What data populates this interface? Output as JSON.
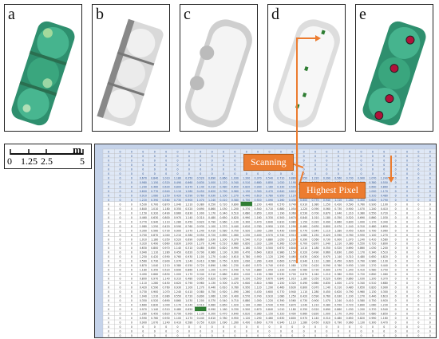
{
  "panels": [
    {
      "id": "a",
      "label": "a"
    },
    {
      "id": "b",
      "label": "b"
    },
    {
      "id": "c",
      "label": "c"
    },
    {
      "id": "d",
      "label": "d"
    },
    {
      "id": "e",
      "label": "e"
    }
  ],
  "scale": {
    "unit": "m",
    "ticks": [
      "0",
      "1.25",
      "2.5",
      "5"
    ]
  },
  "callouts": {
    "scanning": "Scanning",
    "highest": "Highest Pixel"
  },
  "grid": {
    "columns": 29,
    "rows": 43
  },
  "colors": {
    "accent": "#ec7c30",
    "highlight": "#2e7d32",
    "header": "#c5d3ea"
  }
}
